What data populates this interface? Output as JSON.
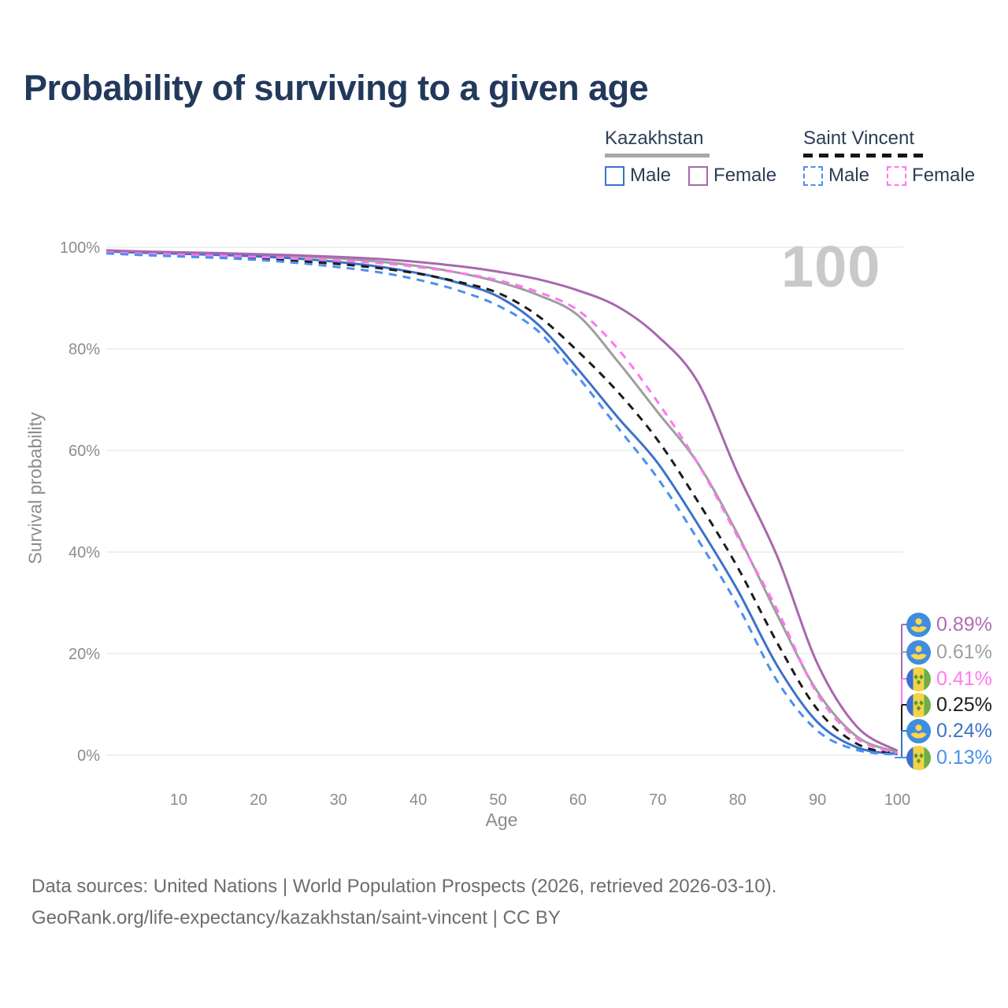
{
  "title": "Probability of surviving to a given age",
  "theme": {
    "background": "#ffffff",
    "title_color": "#22395c",
    "text_color": "#2c3e57",
    "muted_color": "#8c8c8c",
    "footer_color": "#6d6d6d",
    "watermark_color": "#c9c9c9",
    "grid_color": "#ececec"
  },
  "legend": {
    "groups": [
      {
        "country": "Kazakhstan",
        "line_style": "solid",
        "line_color": "#a7a7a7",
        "items": [
          {
            "label": "Male",
            "series": "kazakhstan-male"
          },
          {
            "label": "Female",
            "series": "kazakhstan-female"
          }
        ]
      },
      {
        "country": "Saint Vincent",
        "line_style": "dashed",
        "line_color": "#151515",
        "items": [
          {
            "label": "Male",
            "series": "saint-vincent-male"
          },
          {
            "label": "Female",
            "series": "saint-vincent-female"
          }
        ]
      }
    ]
  },
  "footer": {
    "line1": "Data sources: United Nations | World Population Prospects (2026, retrieved 2026-03-10).",
    "line2": "GeoRank.org/life-expectancy/kazakhstan/saint-vincent | CC BY"
  },
  "chart_data": {
    "type": "line",
    "title": "Probability of surviving to a given age",
    "xlabel": "Age",
    "ylabel": "Survival probability",
    "watermark": "100",
    "grid": "horizontal",
    "xlim": [
      0,
      100
    ],
    "ylim": [
      0,
      100
    ],
    "x_ticks": [
      {
        "label": "10",
        "value": 10
      },
      {
        "label": "20",
        "value": 20
      },
      {
        "label": "30",
        "value": 30
      },
      {
        "label": "40",
        "value": 40
      },
      {
        "label": "50",
        "value": 50
      },
      {
        "label": "60",
        "value": 60
      },
      {
        "label": "70",
        "value": 70
      },
      {
        "label": "80",
        "value": 80
      },
      {
        "label": "90",
        "value": 90
      },
      {
        "label": "100",
        "value": 100
      }
    ],
    "y_ticks": [
      {
        "label": "0%",
        "value": 0
      },
      {
        "label": "20%",
        "value": 20
      },
      {
        "label": "40%",
        "value": 40
      },
      {
        "label": "60%",
        "value": 60
      },
      {
        "label": "80%",
        "value": 80
      },
      {
        "label": "100%",
        "value": 100
      }
    ],
    "ages": [
      0,
      5,
      10,
      15,
      20,
      25,
      30,
      35,
      40,
      45,
      50,
      55,
      60,
      65,
      70,
      75,
      80,
      85,
      90,
      95,
      100
    ],
    "series": [
      {
        "id": "kazakhstan-female",
        "country": "Kazakhstan",
        "sex": "Female",
        "line": "solid",
        "color": "#a868ad",
        "label_color": "#b06cb4",
        "flag": "kz",
        "end_label": "0.89%",
        "values": [
          99.4,
          99.2,
          99.0,
          98.85,
          98.65,
          98.4,
          98.1,
          97.7,
          97.1,
          96.3,
          95.2,
          93.7,
          91.5,
          88.3,
          82.5,
          73.5,
          55.5,
          39.0,
          18.0,
          5.5,
          0.89
        ]
      },
      {
        "id": "kazakhstan-both",
        "country": "Kazakhstan",
        "sex": "Both",
        "line": "solid",
        "color": "#9e9e9e",
        "label_color": "#a0a0a0",
        "flag": "kz",
        "end_label": "0.61%",
        "values": [
          99.3,
          99.1,
          98.9,
          98.75,
          98.55,
          98.25,
          97.8,
          97.2,
          96.3,
          95.0,
          93.2,
          90.6,
          86.6,
          77.5,
          67.5,
          57.5,
          43.5,
          27.5,
          12.5,
          3.6,
          0.61
        ]
      },
      {
        "id": "saint-vincent-female",
        "country": "Saint Vincent",
        "sex": "Female",
        "line": "dashed",
        "color": "#ff77f0",
        "label_color": "#ff7bf0",
        "flag": "sv",
        "end_label": "0.41%",
        "values": [
          99.0,
          98.75,
          98.55,
          98.35,
          98.1,
          97.8,
          97.4,
          96.9,
          96.1,
          95.0,
          93.5,
          91.2,
          87.6,
          80.0,
          69.5,
          57.5,
          43.0,
          28.5,
          12.0,
          3.2,
          0.41
        ]
      },
      {
        "id": "saint-vincent-both",
        "country": "Saint Vincent",
        "sex": "Both",
        "line": "dashed",
        "color": "#1c1c1c",
        "label_color": "#1c1c1c",
        "flag": "sv",
        "end_label": "0.25%",
        "values": [
          98.85,
          98.6,
          98.35,
          98.1,
          97.7,
          97.25,
          96.7,
          95.9,
          94.8,
          93.2,
          91.0,
          86.5,
          79.5,
          71.5,
          62.0,
          50.0,
          37.0,
          22.0,
          9.0,
          2.2,
          0.25
        ]
      },
      {
        "id": "kazakhstan-male",
        "country": "Kazakhstan",
        "sex": "Male",
        "line": "solid",
        "color": "#3c72c8",
        "label_color": "#3e74c6",
        "flag": "kz",
        "end_label": "0.24%",
        "values": [
          99.2,
          98.95,
          98.75,
          98.5,
          98.2,
          97.75,
          97.1,
          96.2,
          94.9,
          93.0,
          90.3,
          84.8,
          76.0,
          66.5,
          57.5,
          45.5,
          32.5,
          17.5,
          6.5,
          1.5,
          0.24
        ]
      },
      {
        "id": "saint-vincent-male",
        "country": "Saint Vincent",
        "sex": "Male",
        "line": "dashed",
        "color": "#4a90f0",
        "label_color": "#4a90f0",
        "flag": "sv",
        "end_label": "0.13%",
        "values": [
          98.8,
          98.5,
          98.2,
          97.9,
          97.5,
          96.9,
          96.1,
          95.1,
          93.6,
          91.5,
          88.5,
          83.5,
          74.5,
          64.5,
          54.5,
          42.5,
          29.5,
          14.5,
          4.8,
          1.0,
          0.13
        ]
      }
    ]
  }
}
